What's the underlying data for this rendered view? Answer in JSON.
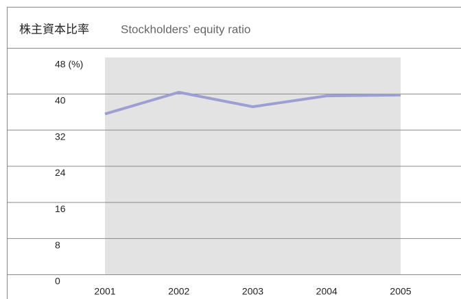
{
  "chart_data": {
    "type": "line",
    "title": "株主資本比率",
    "subtitle": "Stockholders’ equity ratio",
    "categories": [
      "2001",
      "2002",
      "2003",
      "2004",
      "2005"
    ],
    "series": [
      {
        "name": "Stockholders’ equity ratio",
        "color": "#9d9fd3",
        "values": [
          35.5,
          40.3,
          37.1,
          39.5,
          39.7
        ]
      }
    ],
    "ylim": [
      0,
      48
    ],
    "yticks": [
      0,
      8,
      16,
      24,
      32,
      {
        "value": 40,
        "label": "40"
      },
      {
        "value": 48,
        "label": "48 (%)"
      }
    ],
    "grid": true
  }
}
